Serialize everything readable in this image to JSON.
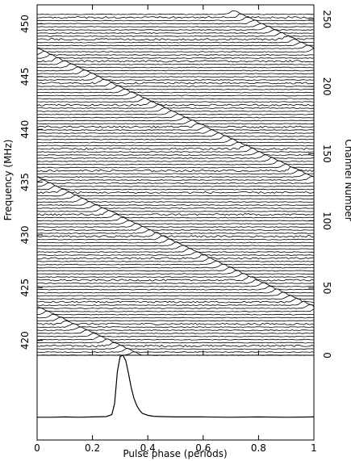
{
  "chart_data": [
    {
      "type": "heatmap",
      "title": "",
      "xlabel": "",
      "ylabel_left": "Frequency (MHz)",
      "ylabel_right": "Channel Number",
      "xlim": [
        0,
        1
      ],
      "ylim_left": [
        418.6,
        451.8
      ],
      "ylim_right": [
        0,
        256
      ],
      "x_ticks": [
        0,
        0.2,
        0.4,
        0.6,
        0.8,
        1
      ],
      "x_tick_labels": [
        "0",
        "0.2",
        "0.4",
        "0.6",
        "0.8",
        "1"
      ],
      "y_ticks_left": [
        420,
        425,
        430,
        435,
        440,
        445,
        450
      ],
      "y_tick_labels_left": [
        "420",
        "425",
        "430",
        "435",
        "440",
        "445",
        "450"
      ],
      "y_ticks_right": [
        0,
        50,
        100,
        150,
        200,
        250
      ],
      "y_tick_labels_right": [
        "0",
        "50",
        "100",
        "150",
        "200",
        "250"
      ],
      "channels": 256,
      "pulse_track": {
        "description_units": "phase (periods) vs channel; phase wraps modulo 1",
        "phase_at_channel_0": 0.35,
        "phase_drift_per_channel": -0.0104
      },
      "colors": {
        "trace": "#000000",
        "background": "#ffffff"
      }
    },
    {
      "type": "line",
      "title": "",
      "xlabel": "Pulse phase (periods)",
      "ylabel": "",
      "xlim": [
        0,
        1
      ],
      "ylim": [
        0,
        1
      ],
      "x_ticks": [
        0,
        0.2,
        0.4,
        0.6,
        0.8,
        1
      ],
      "x_tick_labels": [
        "0",
        "0.2",
        "0.4",
        "0.6",
        "0.8",
        "1"
      ],
      "series": [
        {
          "x": [
            0,
            0.05,
            0.1,
            0.15,
            0.2,
            0.25,
            0.27,
            0.28,
            0.29,
            0.3,
            0.31,
            0.32,
            0.33,
            0.34,
            0.35,
            0.36,
            0.37,
            0.38,
            0.4,
            0.42,
            0.45,
            0.5,
            0.6,
            0.7,
            0.8,
            0.9,
            1.0
          ],
          "y": [
            0.04,
            0.04,
            0.045,
            0.04,
            0.045,
            0.05,
            0.08,
            0.25,
            0.75,
            0.98,
            1.0,
            0.92,
            0.72,
            0.5,
            0.33,
            0.22,
            0.15,
            0.1,
            0.07,
            0.055,
            0.05,
            0.045,
            0.045,
            0.04,
            0.045,
            0.04,
            0.045
          ]
        }
      ],
      "colors": {
        "line": "#000000"
      }
    }
  ]
}
